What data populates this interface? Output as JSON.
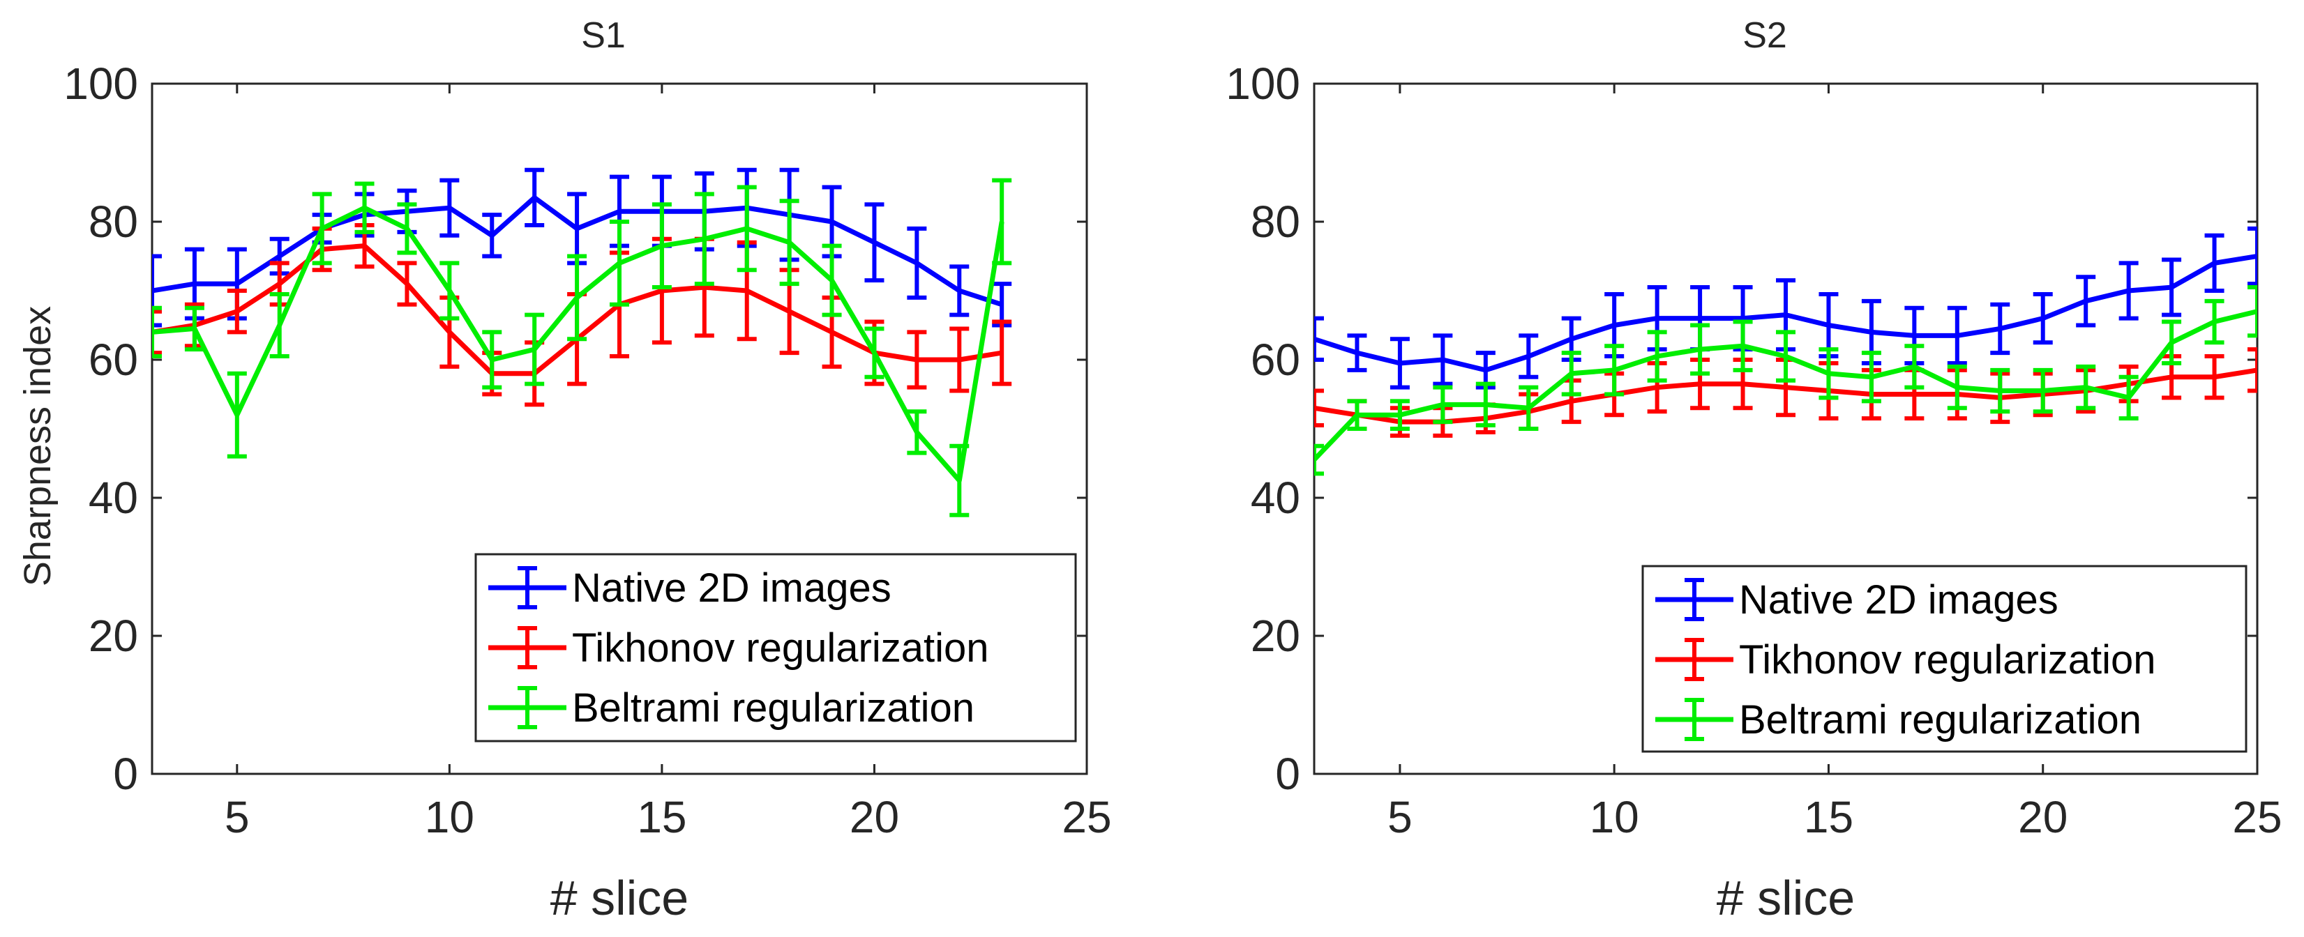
{
  "chart_data": [
    {
      "type": "line",
      "title": "S1",
      "xlabel": "# slice",
      "ylabel": "Sharpness index",
      "xlim": [
        3,
        25
      ],
      "ylim": [
        0,
        100
      ],
      "xticks": [
        5,
        10,
        15,
        20,
        25
      ],
      "yticks": [
        0,
        20,
        40,
        60,
        80,
        100
      ],
      "legend_position": "bottom-right",
      "x": [
        3,
        4,
        5,
        6,
        7,
        8,
        9,
        10,
        11,
        12,
        13,
        14,
        15,
        16,
        17,
        18,
        19,
        20,
        21,
        22,
        23
      ],
      "series": [
        {
          "name": "Native 2D images",
          "color": "#0000ff",
          "values": [
            70,
            71,
            71,
            75,
            79,
            81,
            81.5,
            82,
            78,
            83.5,
            79,
            81.5,
            81.5,
            81.5,
            82,
            81,
            80,
            77,
            74,
            70,
            68
          ],
          "errors": [
            5,
            5,
            5,
            2.5,
            2,
            3,
            3,
            4,
            3,
            4,
            5,
            5,
            5,
            5.5,
            5.5,
            6.5,
            5,
            5.5,
            5,
            3.5,
            3
          ]
        },
        {
          "name": "Tikhonov regularization",
          "color": "#ff0000",
          "values": [
            64,
            65,
            67,
            71,
            76,
            76.5,
            71,
            64,
            58,
            58,
            63,
            68,
            70,
            70.5,
            70,
            67,
            64,
            61,
            60,
            60,
            61
          ],
          "errors": [
            3,
            3,
            3,
            3,
            3,
            3,
            3,
            5,
            3,
            4.5,
            6.5,
            7.5,
            7.5,
            7,
            7,
            6,
            5,
            4.5,
            4,
            4.5,
            4.5
          ]
        },
        {
          "name": "Beltrami regularization",
          "color": "#00ee00",
          "values": [
            64,
            64.5,
            52,
            65,
            79,
            82,
            79,
            70,
            60,
            61.5,
            69,
            74,
            76.5,
            77.5,
            79,
            77,
            71.5,
            61,
            49.5,
            42.5,
            80
          ],
          "errors": [
            3.5,
            3,
            6,
            4.5,
            5,
            3.5,
            3.5,
            4,
            4,
            5,
            6,
            6,
            6,
            6.5,
            6,
            6,
            5,
            3.5,
            3,
            5,
            6
          ]
        }
      ]
    },
    {
      "type": "line",
      "title": "S2",
      "xlabel": "# slice",
      "ylabel": "",
      "xlim": [
        3,
        25
      ],
      "ylim": [
        0,
        100
      ],
      "xticks": [
        5,
        10,
        15,
        20,
        25
      ],
      "yticks": [
        0,
        20,
        40,
        60,
        80,
        100
      ],
      "legend_position": "bottom-right",
      "x": [
        3,
        4,
        5,
        6,
        7,
        8,
        9,
        10,
        11,
        12,
        13,
        14,
        15,
        16,
        17,
        18,
        19,
        20,
        21,
        22,
        23,
        24,
        25
      ],
      "series": [
        {
          "name": "Native 2D images",
          "color": "#0000ff",
          "values": [
            63,
            61,
            59.5,
            60,
            58.5,
            60.5,
            63,
            65,
            66,
            66,
            66,
            66.5,
            65,
            64,
            63.5,
            63.5,
            64.5,
            66,
            68.5,
            70,
            70.5,
            74,
            75
          ],
          "errors": [
            3,
            2.5,
            3.5,
            3.5,
            2.5,
            3,
            3,
            4.5,
            4.5,
            4.5,
            4.5,
            5,
            4.5,
            4.5,
            4,
            4,
            3.5,
            3.5,
            3.5,
            4,
            4,
            4,
            4
          ]
        },
        {
          "name": "Tikhonov regularization",
          "color": "#ff0000",
          "values": [
            53,
            52,
            51,
            51,
            51.5,
            52.5,
            54,
            55,
            56,
            56.5,
            56.5,
            56,
            55.5,
            55,
            55,
            55,
            54.5,
            55,
            55.5,
            56.5,
            57.5,
            57.5,
            58.5
          ],
          "errors": [
            2.5,
            2,
            2,
            2,
            2,
            2.5,
            3,
            3,
            3.5,
            3.5,
            3.5,
            4,
            4,
            3.5,
            3.5,
            3.5,
            3.5,
            3,
            3,
            2.5,
            3,
            3,
            3
          ]
        },
        {
          "name": "Beltrami regularization",
          "color": "#00ee00",
          "values": [
            45.5,
            52,
            52,
            53.5,
            53.5,
            53,
            58,
            58.5,
            60.5,
            61.5,
            62,
            60.5,
            58,
            57.5,
            59,
            56,
            55.5,
            55.5,
            56,
            54.5,
            62.5,
            65.5,
            67
          ],
          "errors": [
            2,
            2,
            2,
            2.5,
            3,
            3,
            3,
            3.5,
            3.5,
            3.5,
            3.5,
            3.5,
            3.5,
            3.5,
            3,
            3,
            3,
            3,
            3,
            3,
            3,
            3,
            3.5
          ]
        }
      ]
    }
  ]
}
